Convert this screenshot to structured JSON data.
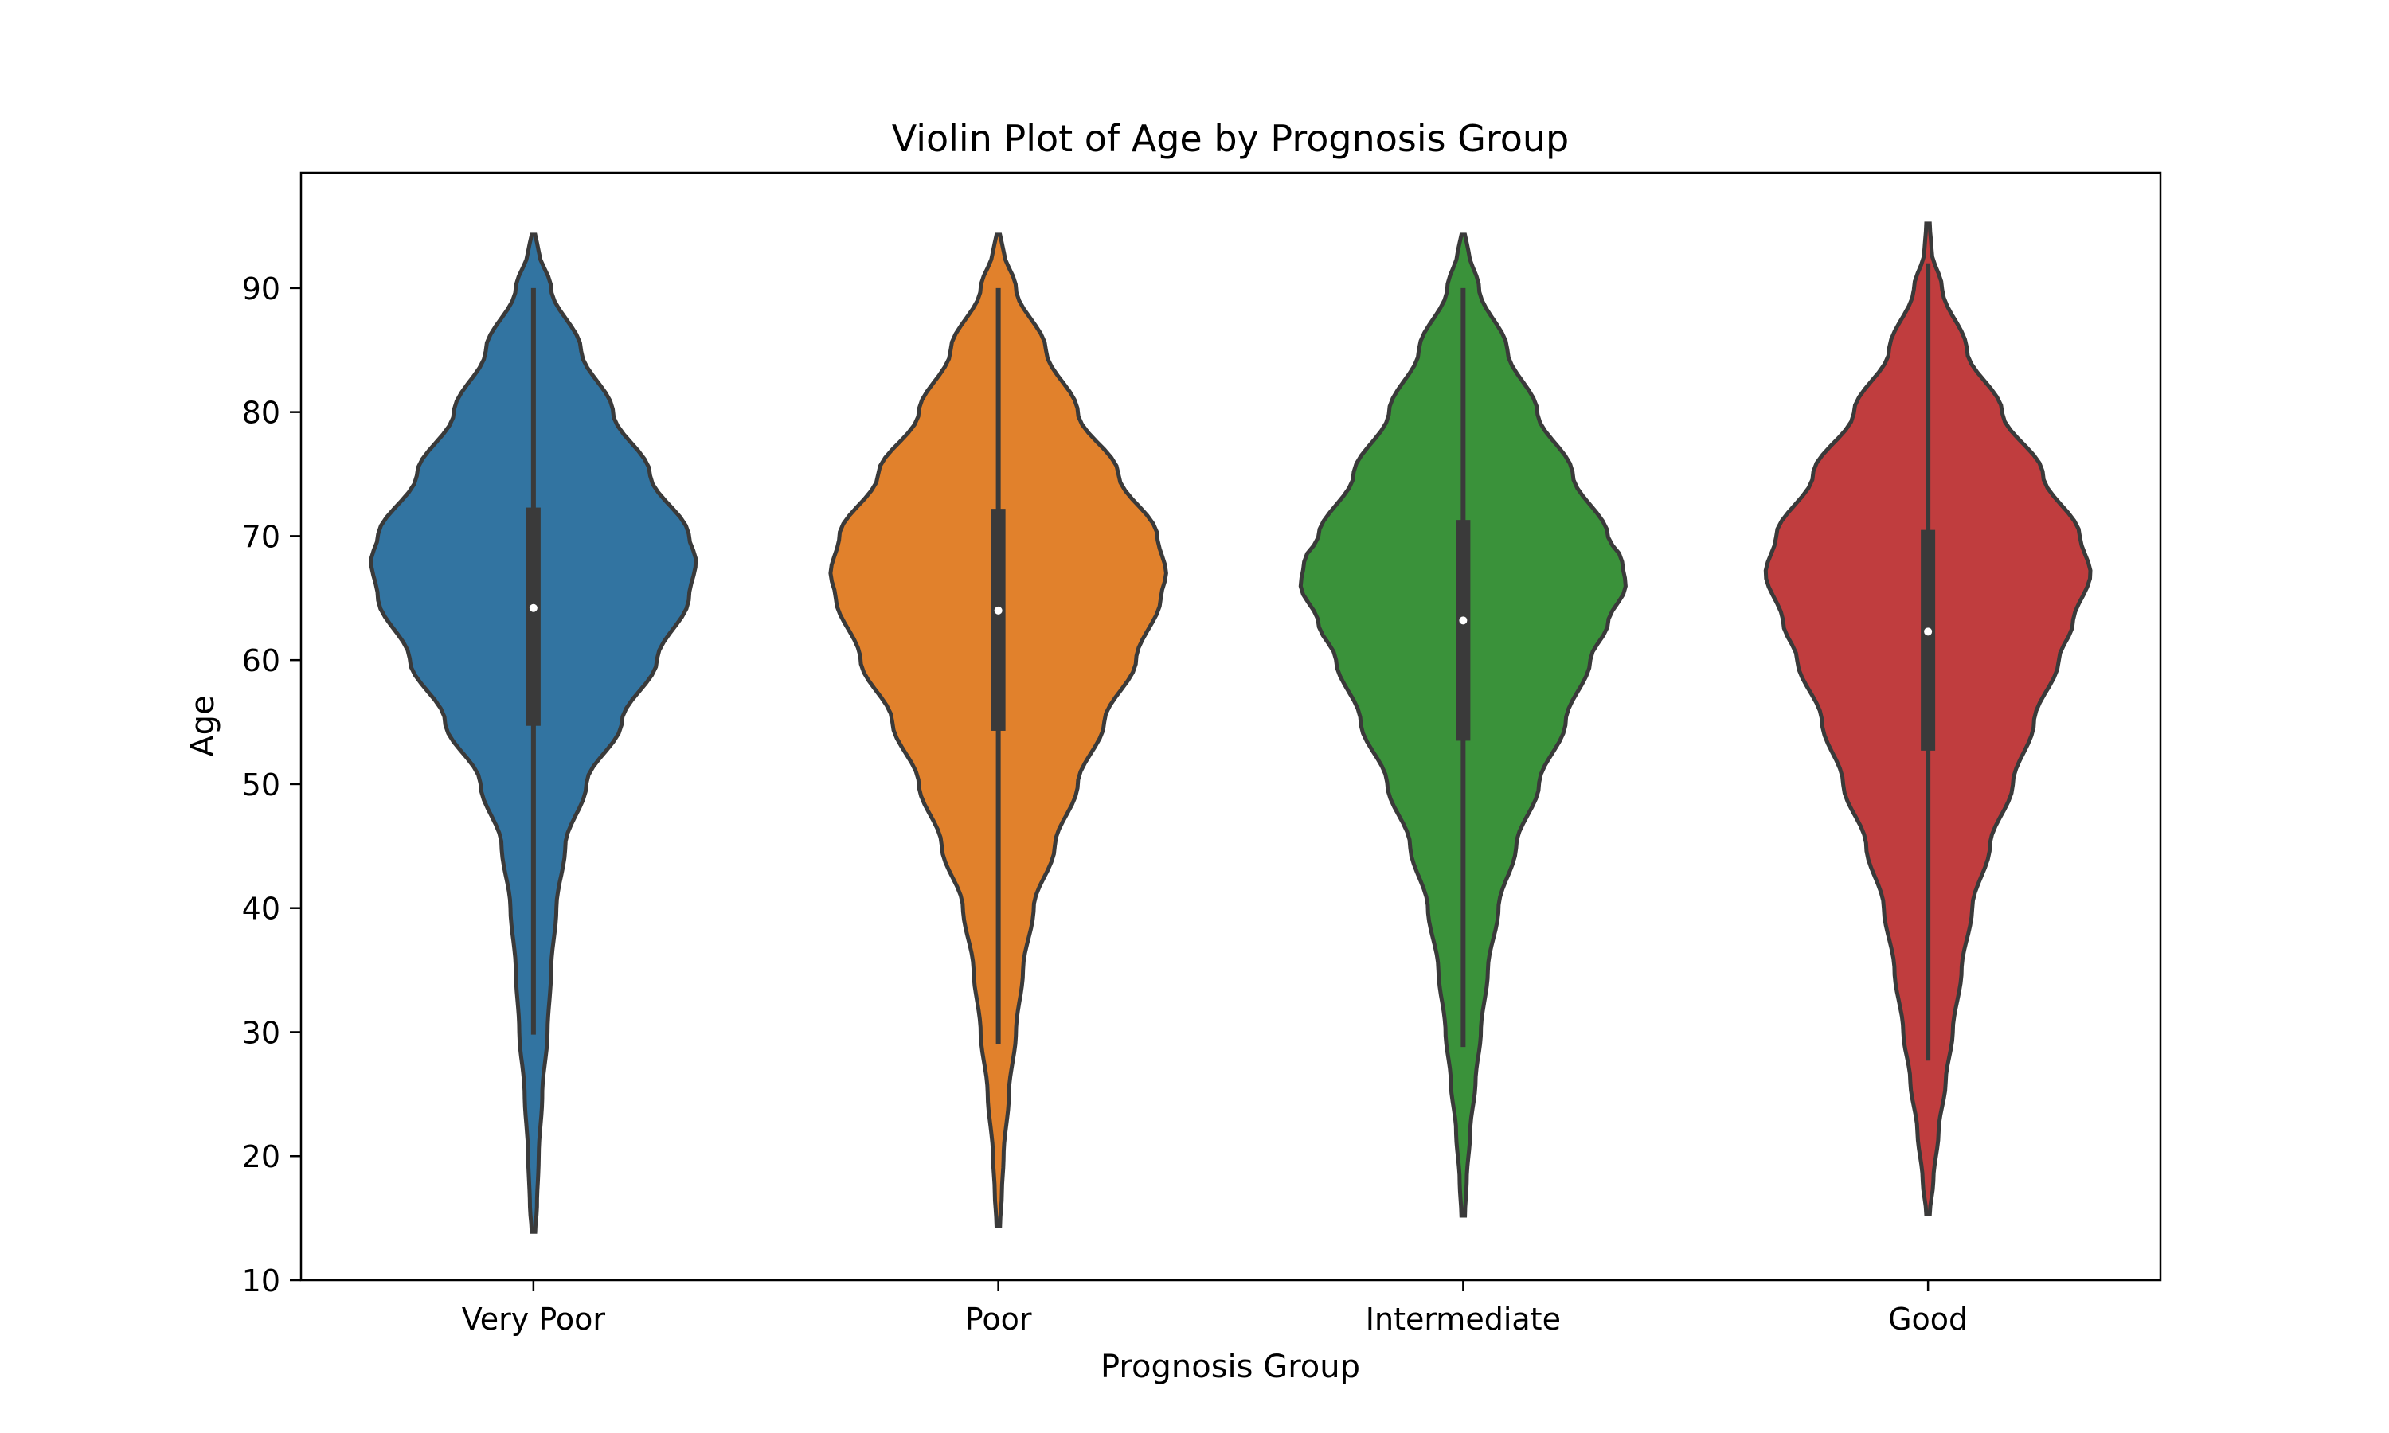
{
  "chart_data": {
    "type": "violin",
    "title": "Violin Plot of Age by Prognosis Group",
    "xlabel": "Prognosis Group",
    "ylabel": "Age",
    "ylim": [
      10,
      99.3
    ],
    "yticks": [
      10,
      20,
      30,
      40,
      50,
      60,
      70,
      80,
      90
    ],
    "grid": false,
    "categories": [
      "Very Poor",
      "Poor",
      "Intermediate",
      "Good"
    ],
    "colors": [
      "#3274a1",
      "#e1812c",
      "#3a923a",
      "#c03d3e"
    ],
    "max_halfwidth_fraction": 0.38,
    "series": [
      {
        "category": "Very Poor",
        "median": 64.2,
        "q1": 54.7,
        "q3": 72.3,
        "whisker_low": 29.8,
        "whisker_high": 90.0,
        "min": 13.9,
        "max": 94.3,
        "density": [
          [
            13.9,
            0.01
          ],
          [
            16,
            0.02
          ],
          [
            20,
            0.03
          ],
          [
            25,
            0.05
          ],
          [
            30,
            0.08
          ],
          [
            35,
            0.1
          ],
          [
            40,
            0.13
          ],
          [
            45,
            0.18
          ],
          [
            50,
            0.3
          ],
          [
            55,
            0.5
          ],
          [
            60,
            0.7
          ],
          [
            65,
            0.88
          ],
          [
            68,
            0.92
          ],
          [
            70,
            0.88
          ],
          [
            75,
            0.66
          ],
          [
            80,
            0.45
          ],
          [
            85,
            0.27
          ],
          [
            90,
            0.1
          ],
          [
            93,
            0.03
          ],
          [
            94.3,
            0.01
          ]
        ]
      },
      {
        "category": "Poor",
        "median": 64.0,
        "q1": 54.3,
        "q3": 72.2,
        "whisker_low": 29.0,
        "whisker_high": 90.0,
        "min": 14.4,
        "max": 94.3,
        "density": [
          [
            14.4,
            0.01
          ],
          [
            17,
            0.02
          ],
          [
            20,
            0.03
          ],
          [
            25,
            0.06
          ],
          [
            30,
            0.1
          ],
          [
            35,
            0.14
          ],
          [
            40,
            0.2
          ],
          [
            45,
            0.32
          ],
          [
            50,
            0.45
          ],
          [
            55,
            0.6
          ],
          [
            60,
            0.78
          ],
          [
            65,
            0.92
          ],
          [
            67,
            0.95
          ],
          [
            70,
            0.9
          ],
          [
            75,
            0.68
          ],
          [
            80,
            0.45
          ],
          [
            85,
            0.27
          ],
          [
            90,
            0.1
          ],
          [
            93,
            0.03
          ],
          [
            94.3,
            0.01
          ]
        ]
      },
      {
        "category": "Intermediate",
        "median": 63.2,
        "q1": 53.5,
        "q3": 71.3,
        "whisker_low": 28.8,
        "whisker_high": 90.0,
        "min": 15.2,
        "max": 94.3,
        "density": [
          [
            15.2,
            0.01
          ],
          [
            18,
            0.02
          ],
          [
            22,
            0.04
          ],
          [
            26,
            0.07
          ],
          [
            30,
            0.1
          ],
          [
            35,
            0.14
          ],
          [
            40,
            0.2
          ],
          [
            45,
            0.3
          ],
          [
            50,
            0.43
          ],
          [
            55,
            0.58
          ],
          [
            60,
            0.72
          ],
          [
            63,
            0.82
          ],
          [
            66,
            0.92
          ],
          [
            68,
            0.9
          ],
          [
            70,
            0.82
          ],
          [
            75,
            0.62
          ],
          [
            80,
            0.42
          ],
          [
            85,
            0.25
          ],
          [
            90,
            0.09
          ],
          [
            93,
            0.03
          ],
          [
            94.3,
            0.01
          ]
        ]
      },
      {
        "category": "Good",
        "median": 62.3,
        "q1": 52.7,
        "q3": 70.5,
        "whisker_low": 27.7,
        "whisker_high": 92.0,
        "min": 15.3,
        "max": 95.2,
        "density": [
          [
            15.3,
            0.01
          ],
          [
            18,
            0.03
          ],
          [
            22,
            0.06
          ],
          [
            26,
            0.1
          ],
          [
            30,
            0.14
          ],
          [
            35,
            0.19
          ],
          [
            40,
            0.25
          ],
          [
            45,
            0.35
          ],
          [
            50,
            0.48
          ],
          [
            55,
            0.6
          ],
          [
            60,
            0.74
          ],
          [
            63,
            0.82
          ],
          [
            67,
            0.92
          ],
          [
            70,
            0.86
          ],
          [
            75,
            0.65
          ],
          [
            80,
            0.42
          ],
          [
            85,
            0.22
          ],
          [
            90,
            0.08
          ],
          [
            93,
            0.02
          ],
          [
            95.2,
            0.01
          ]
        ]
      }
    ]
  }
}
